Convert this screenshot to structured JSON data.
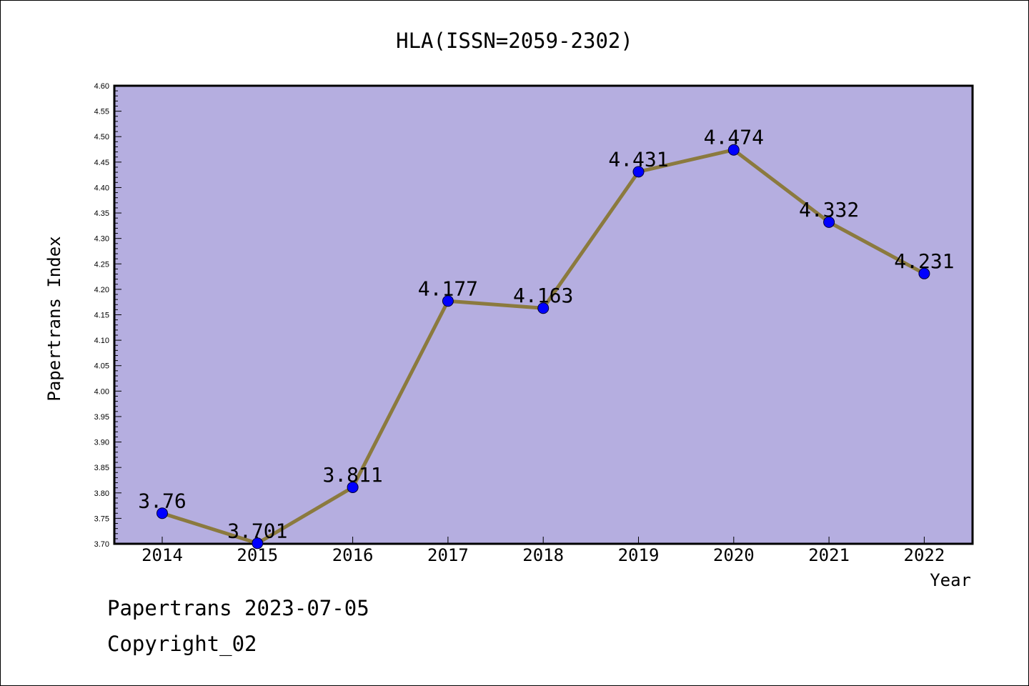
{
  "chart_data": {
    "type": "line",
    "title": "HLA(ISSN=2059-2302)",
    "xlabel": "Year",
    "ylabel": "Papertrans Index",
    "categories": [
      "2014",
      "2015",
      "2016",
      "2017",
      "2018",
      "2019",
      "2020",
      "2021",
      "2022"
    ],
    "values": [
      3.76,
      3.701,
      3.811,
      4.177,
      4.163,
      4.431,
      4.474,
      4.332,
      4.231
    ],
    "data_labels": [
      "3.76",
      "3.701",
      "3.811",
      "4.177",
      "4.163",
      "4.431",
      "4.474",
      "4.332",
      "4.231"
    ],
    "ylim": [
      3.7,
      4.6
    ],
    "y_ticks": [
      "3.70",
      "3.75",
      "3.80",
      "3.85",
      "3.90",
      "3.95",
      "4.00",
      "4.05",
      "4.10",
      "4.15",
      "4.20",
      "4.25",
      "4.30",
      "4.35",
      "4.40",
      "4.45",
      "4.50",
      "4.55",
      "4.60"
    ],
    "grid": false,
    "colors": {
      "plot_background": "#b5aee0",
      "line": "#8b7a3e",
      "marker": "#0000ff"
    }
  },
  "footer": {
    "line1": "Papertrans 2023-07-05",
    "line2": "Copyright_02"
  }
}
